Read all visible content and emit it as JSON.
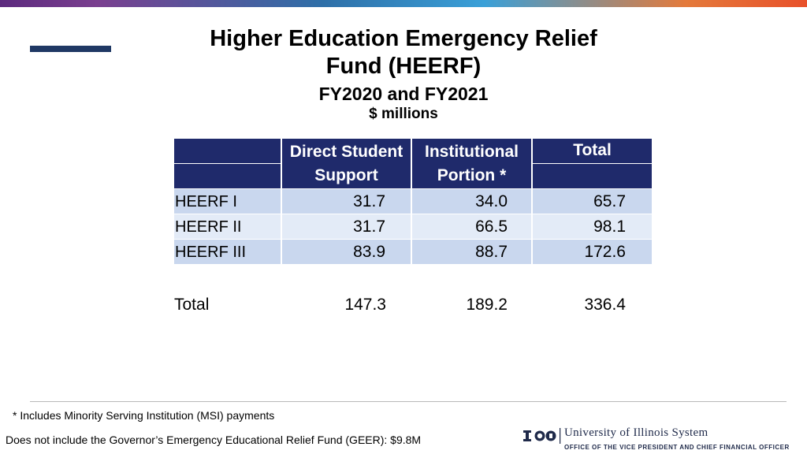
{
  "title": {
    "line1": "Higher Education Emergency Relief",
    "line2": "Fund  (HEERF)",
    "subtitle": "FY2020 and FY2021",
    "units": "$ millions"
  },
  "table": {
    "headers": {
      "direct_line1": "Direct Student",
      "direct_line2": "Support",
      "inst_line1": "Institutional",
      "inst_line2": "Portion *",
      "total": "Total"
    },
    "rows": [
      {
        "label": "HEERF I",
        "direct": "31.7",
        "institutional": "34.0",
        "total": "65.7"
      },
      {
        "label": "HEERF II",
        "direct": "31.7",
        "institutional": "66.5",
        "total": "98.1"
      },
      {
        "label": "HEERF III",
        "direct": "83.9",
        "institutional": "88.7",
        "total": "172.6"
      }
    ],
    "totals": {
      "label": "Total",
      "direct": "147.3",
      "institutional": "189.2",
      "total": "336.4"
    }
  },
  "footnotes": {
    "msi": "* Includes Minority Serving Institution (MSI) payments",
    "geer": "Does not include the Governor’s  Emergency Educational Relief Fund  (GEER): $9.8M"
  },
  "logo": {
    "university": "University of Illinois System",
    "office": "OFFICE OF THE VICE PRESIDENT AND CHIEF FINANCIAL OFFICER"
  },
  "colors": {
    "header_bg": "#1f2a6b",
    "row_dark": "#c9d7ee",
    "row_light": "#e3ebf7",
    "accent": "#1f3864"
  }
}
